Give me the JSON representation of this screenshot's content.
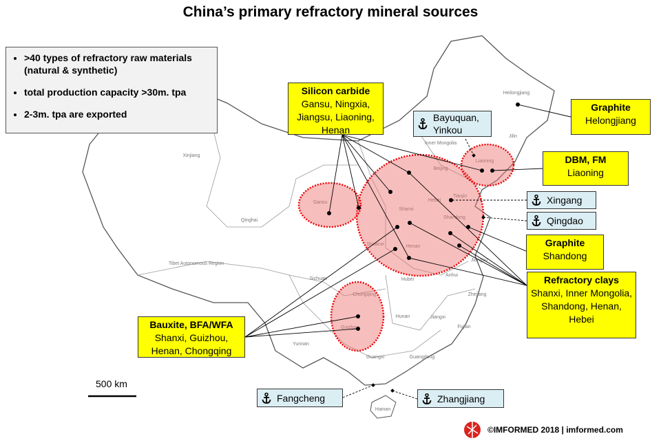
{
  "title": "China’s primary refractory mineral sources",
  "info_box": {
    "bullets": [
      ">40 types of refractory raw materials (natural & synthetic)",
      "total production capacity >30m. tpa",
      "2-3m. tpa are exported"
    ]
  },
  "minerals": [
    {
      "title": "Silicon carbide",
      "regions": "Gansu, Ningxia, Jiangsu, Liaoning, Henan"
    },
    {
      "title": "Graphite",
      "regions": "Helongjiang"
    },
    {
      "title": "DBM, FM",
      "regions": "Liaoning"
    },
    {
      "title": "Graphite",
      "regions": "Shandong"
    },
    {
      "title": "Refractory clays",
      "regions": "Shanxi, Inner Mongolia, Shandong, Henan, Hebei"
    },
    {
      "title": "Bauxite, BFA/WFA",
      "regions": "Shanxi, Guizhou, Henan, Chongqing"
    }
  ],
  "ports": [
    "Bayuquan, Yinkou",
    "Xingang",
    "Qingdao",
    "Fangcheng",
    "Zhangjiang"
  ],
  "map_labels": [
    "Heilongjiang",
    "Jilin",
    "Inner Mongolia",
    "Liaoning",
    "Beijing",
    "Tianjin",
    "Hebei",
    "Shandong",
    "Shanxi",
    "Henan",
    "Xinjiang",
    "Qinghai",
    "Gansu",
    "Tibet Autonomous Region",
    "Sichuan",
    "Chongqing",
    "Guizhou",
    "Yunnan",
    "Guangxi",
    "Guangdong",
    "Hunan",
    "Jiangxi",
    "Fujian",
    "Zhejiang",
    "Anhui",
    "Hubei",
    "Jiangsu",
    "Shaanxi",
    "Hainan"
  ],
  "scale": "500 km",
  "footer": "©IMFORMED 2018  |  imformed.com"
}
